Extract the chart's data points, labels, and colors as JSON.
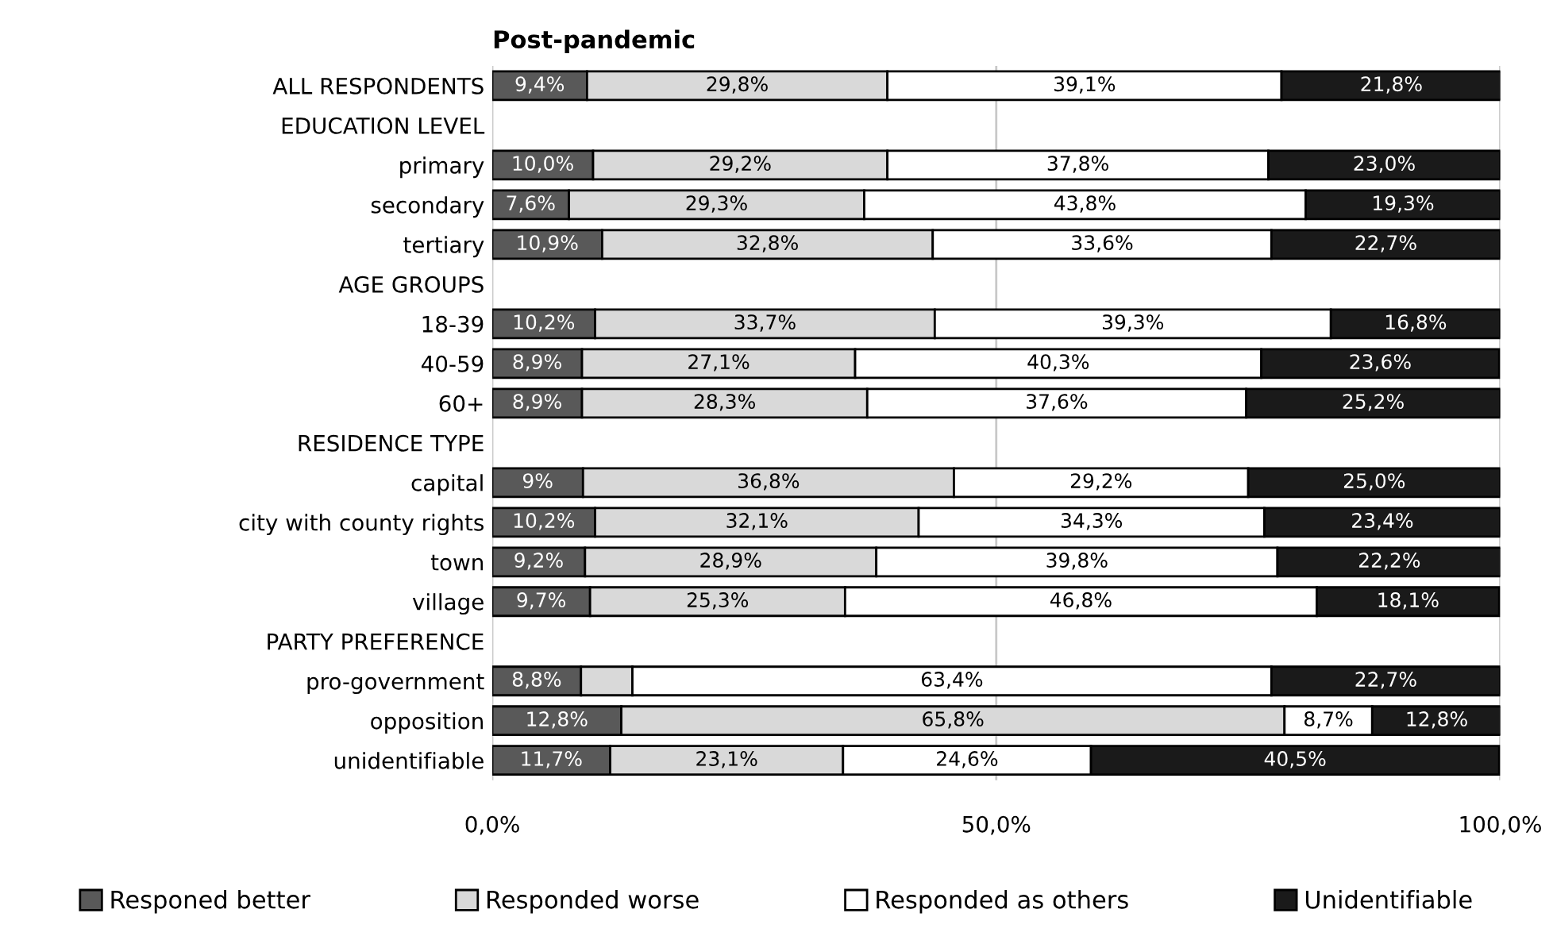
{
  "chart_data": {
    "type": "bar",
    "orientation": "horizontal",
    "stacked": true,
    "title": "Post-pandemic",
    "categories": [
      "ALL RESPONDENTS",
      "EDUCATION LEVEL",
      "primary",
      "secondary",
      "tertiary",
      "AGE GROUPS",
      "18-39",
      "40-59",
      "60+",
      "RESIDENCE TYPE",
      "capital",
      "city with county rights",
      "town",
      "village",
      "PARTY PREFERENCE",
      "pro-government",
      "opposition",
      "unidentifiable"
    ],
    "series": [
      {
        "name": "Responed better",
        "color": "#595959",
        "values": [
          9.4,
          null,
          10.0,
          7.6,
          10.9,
          null,
          10.2,
          8.9,
          8.9,
          null,
          9,
          10.2,
          9.2,
          9.7,
          null,
          8.8,
          12.8,
          11.7
        ],
        "value_labels": [
          "9,4%",
          null,
          "10,0%",
          "7,6%",
          "10,9%",
          null,
          "10,2%",
          "8,9%",
          "8,9%",
          null,
          "9%",
          "10,2%",
          "9,2%",
          "9,7%",
          null,
          "8,8%",
          "12,8%",
          "11,7%"
        ]
      },
      {
        "name": "Responded worse",
        "color": "#d9d9d9",
        "values": [
          29.8,
          null,
          29.2,
          29.3,
          32.8,
          null,
          33.7,
          27.1,
          28.3,
          null,
          36.8,
          32.1,
          28.9,
          25.3,
          null,
          5.1,
          65.8,
          23.1
        ],
        "value_labels": [
          "29,8%",
          null,
          "29,2%",
          "29,3%",
          "32,8%",
          null,
          "33,7%",
          "27,1%",
          "28,3%",
          null,
          "36,8%",
          "32,1%",
          "28,9%",
          "25,3%",
          null,
          null,
          "65,8%",
          "23,1%"
        ]
      },
      {
        "name": "Responded as others",
        "color": "#ffffff",
        "values": [
          39.1,
          null,
          37.8,
          43.8,
          33.6,
          null,
          39.3,
          40.3,
          37.6,
          null,
          29.2,
          34.3,
          39.8,
          46.8,
          null,
          63.4,
          8.7,
          24.6
        ],
        "value_labels": [
          "39,1%",
          null,
          "37,8%",
          "43,8%",
          "33,6%",
          null,
          "39,3%",
          "40,3%",
          "37,6%",
          null,
          "29,2%",
          "34,3%",
          "39,8%",
          "46,8%",
          null,
          "63,4%",
          "8,7%",
          "24,6%"
        ]
      },
      {
        "name": "Unidentifiable",
        "color": "#1a1a1a",
        "values": [
          21.8,
          null,
          23.0,
          19.3,
          22.7,
          null,
          16.8,
          23.6,
          25.2,
          null,
          25.0,
          23.4,
          22.2,
          18.1,
          null,
          22.7,
          12.8,
          40.5
        ],
        "value_labels": [
          "21,8%",
          null,
          "23,0%",
          "19,3%",
          "22,7%",
          null,
          "16,8%",
          "23,6%",
          "25,2%",
          null,
          "25,0%",
          "23,4%",
          "22,2%",
          "18,1%",
          null,
          "22,7%",
          "12,8%",
          "40,5%"
        ]
      }
    ],
    "xlim": [
      0,
      100
    ],
    "xticks": [
      {
        "value": 0,
        "label": "0,0%"
      },
      {
        "value": 50,
        "label": "50,0%"
      },
      {
        "value": 100,
        "label": "100,0%"
      }
    ],
    "grid": "x",
    "legend": "bottom"
  }
}
